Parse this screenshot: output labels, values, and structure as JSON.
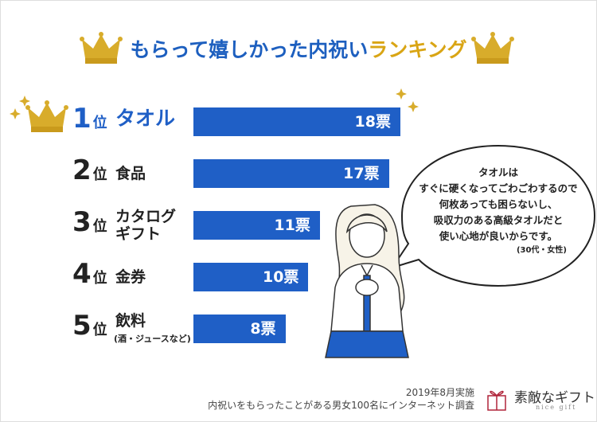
{
  "chart_data": {
    "type": "bar",
    "orientation": "horizontal",
    "title": {
      "main": "もらって嬉しかった内祝い",
      "accent": "ランキング"
    },
    "ranks": [
      "1",
      "2",
      "3",
      "4",
      "5"
    ],
    "rank_suffix": "位",
    "categories": [
      "タオル",
      "食品",
      "カタログギフト",
      "金券",
      "飲料"
    ],
    "category_notes": [
      null,
      null,
      null,
      null,
      "(酒・ジュースなど)"
    ],
    "values": [
      18,
      17,
      11,
      10,
      8
    ],
    "value_labels": [
      "18票",
      "17票",
      "11票",
      "10票",
      "8票"
    ],
    "color": "#1f5fc6"
  },
  "quote": {
    "lines": [
      "タオルは",
      "すぐに硬くなってごわごわするので",
      "何枚あっても困らないし、",
      "吸収力のある高級タオルだと",
      "使い心地が良いからです。"
    ],
    "attribution": "(30代・女性)"
  },
  "footer": {
    "date": "2019年8月実施",
    "survey": "内祝いをもらったことがある男女100名にインターネット調査"
  },
  "logo": {
    "name": "素敵なギフト",
    "sub": "nice gift"
  }
}
